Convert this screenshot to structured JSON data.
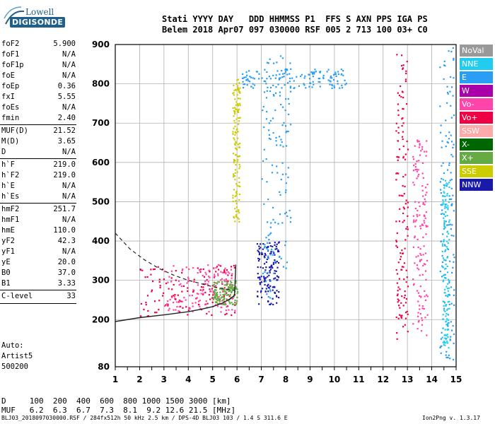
{
  "logo": {
    "line1": "Lowell",
    "line2": "DIGISONDE"
  },
  "header": {
    "line1": "Stati YYYY DAY   DDD HHMMSS P1  FFS S AXN PPS IGA PS",
    "line2": "Belem 2018 Apr07 097 030000 RSF 005 2 713 100 03+ C0"
  },
  "params": [
    {
      "k": "foF2",
      "v": "5.900"
    },
    {
      "k": "foF1",
      "v": "N/A"
    },
    {
      "k": "foF1p",
      "v": "N/A"
    },
    {
      "k": "foE",
      "v": "N/A"
    },
    {
      "k": "foEp",
      "v": "0.36"
    },
    {
      "k": "fxI",
      "v": "5.55"
    },
    {
      "k": "foEs",
      "v": "N/A"
    },
    {
      "k": "fmin",
      "v": "2.40"
    },
    {
      "k": "MUF(D)",
      "v": "21.52"
    },
    {
      "k": "M(D)",
      "v": "3.65"
    },
    {
      "k": "D",
      "v": "N/A"
    },
    {
      "k": "h`F",
      "v": "219.0"
    },
    {
      "k": "h`F2",
      "v": "219.0"
    },
    {
      "k": "h`E",
      "v": "N/A"
    },
    {
      "k": "h`Es",
      "v": "N/A"
    },
    {
      "k": "hmF2",
      "v": "251.7"
    },
    {
      "k": "hmF1",
      "v": "N/A"
    },
    {
      "k": "hmE",
      "v": "110.0"
    },
    {
      "k": "yF2",
      "v": "42.3"
    },
    {
      "k": "yF1",
      "v": "N/A"
    },
    {
      "k": "yE",
      "v": "20.0"
    },
    {
      "k": "B0",
      "v": "37.0"
    },
    {
      "k": "B1",
      "v": "3.33"
    },
    {
      "k": "C-level",
      "v": "33"
    }
  ],
  "autoscaling": {
    "line1": "Auto:",
    "line2": "Artist5",
    "line3": "500200"
  },
  "legend": [
    {
      "label": "NoVal",
      "color": "#999999"
    },
    {
      "label": "NNE",
      "color": "#22ccee"
    },
    {
      "label": "E",
      "color": "#2a9df4"
    },
    {
      "label": "W",
      "color": "#aa00aa"
    },
    {
      "label": "Vo-",
      "color": "#ff44aa"
    },
    {
      "label": "Vo+",
      "color": "#ee0044"
    },
    {
      "label": "SSW",
      "color": "#ffaaaa"
    },
    {
      "label": "X-",
      "color": "#006600"
    },
    {
      "label": "X+",
      "color": "#66aa44"
    },
    {
      "label": "SSE",
      "color": "#cccc00"
    },
    {
      "label": "NNW",
      "color": "#1a1aaa"
    }
  ],
  "muf_table": {
    "d_row": "D     100  200  400  600  800 1000 1500 3000 [km]",
    "muf_row": "MUF   6.2  6.3  6.7  7.3  8.1  9.2 12.6 21.5 [MHz]"
  },
  "footer": "BLJ03_2018097030000.RSF / 284fx512h 50 kHz 2.5 km / DPS-4D BLJ03 103 / 1.4 S 311.6 E",
  "version": "Ion2Png v. 1.3.17",
  "chart_data": {
    "type": "scatter",
    "x_axis": {
      "min": 1,
      "max": 15,
      "ticks": [
        1,
        2,
        3,
        4,
        5,
        6,
        7,
        8,
        9,
        10,
        11,
        12,
        13,
        14,
        15
      ]
    },
    "y_axis": {
      "min": 80,
      "max": 900,
      "ticks": [
        80,
        200,
        300,
        400,
        500,
        600,
        700,
        800,
        900
      ]
    },
    "grid": true,
    "hF_trace": {
      "x": [
        1.0,
        2.0,
        3.0,
        4.0,
        4.5,
        5.0,
        5.4,
        5.7,
        5.9
      ],
      "y": [
        195,
        205,
        212,
        220,
        226,
        233,
        242,
        252,
        262
      ]
    },
    "o_profile": {
      "x": [
        1.0,
        1.6,
        2.2,
        2.8,
        3.4,
        4.0,
        4.6,
        5.0,
        5.4,
        5.7,
        5.9
      ],
      "y": [
        420,
        380,
        352,
        330,
        313,
        300,
        290,
        284,
        279,
        276,
        274
      ]
    },
    "clusters": [
      {
        "color": "#ee0044",
        "x0": 2.0,
        "x1": 5.9,
        "y0": 210,
        "y1": 340
      },
      {
        "color": "#ff44aa",
        "x0": 3.0,
        "x1": 5.9,
        "y0": 220,
        "y1": 345
      },
      {
        "color": "#66aa44",
        "x0": 5.0,
        "x1": 6.0,
        "y0": 240,
        "y1": 300
      },
      {
        "color": "#2a9df4",
        "x0": 6.2,
        "x1": 10.5,
        "y0": 790,
        "y1": 840
      },
      {
        "color": "#1a1aaa",
        "x0": 6.8,
        "x1": 7.7,
        "y0": 240,
        "y1": 400
      },
      {
        "color": "#2a9df4",
        "x0": 7.0,
        "x1": 8.2,
        "y0": 250,
        "y1": 880
      },
      {
        "color": "#cccc00",
        "x0": 5.8,
        "x1": 6.1,
        "y0": 450,
        "y1": 820
      },
      {
        "color": "#ee0044",
        "x0": 12.5,
        "x1": 13.0,
        "y0": 150,
        "y1": 880
      },
      {
        "color": "#ff44aa",
        "x0": 13.2,
        "x1": 13.8,
        "y0": 160,
        "y1": 660
      },
      {
        "color": "#2a9df4",
        "x0": 14.3,
        "x1": 14.9,
        "y0": 100,
        "y1": 900
      },
      {
        "color": "#22ccee",
        "x0": 14.4,
        "x1": 14.7,
        "y0": 130,
        "y1": 560
      }
    ]
  }
}
